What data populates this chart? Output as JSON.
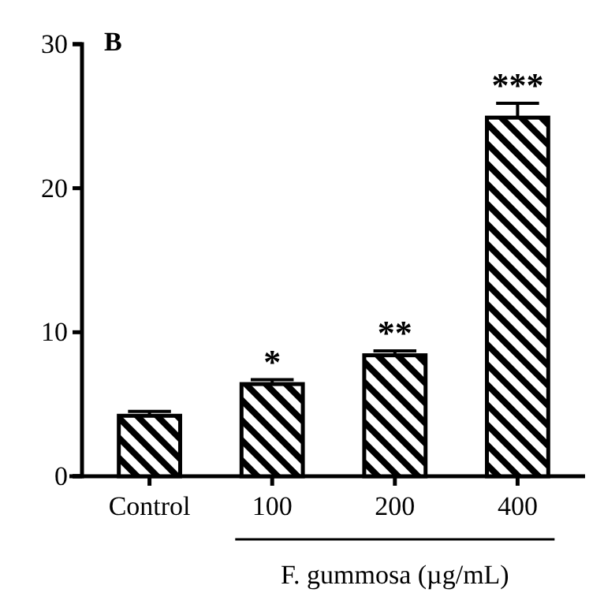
{
  "chart_data": {
    "type": "bar",
    "title": "B",
    "xlabel": "F. gummosa (µg/mL)",
    "categories": [
      "Control",
      "100",
      "200",
      "400"
    ],
    "values": [
      4.2,
      6.4,
      8.4,
      24.9
    ],
    "errors": [
      0.3,
      0.3,
      0.3,
      1.0
    ],
    "color": "#000000",
    "ylim": [
      0,
      30
    ],
    "yticks": [
      0,
      10,
      20,
      30
    ],
    "annotations": [
      {
        "text": "*",
        "x": "100",
        "y": 6.7
      },
      {
        "text": "**",
        "x": "200",
        "y": 8.7
      },
      {
        "text": "***",
        "x": "400",
        "y": 25.9
      }
    ]
  }
}
